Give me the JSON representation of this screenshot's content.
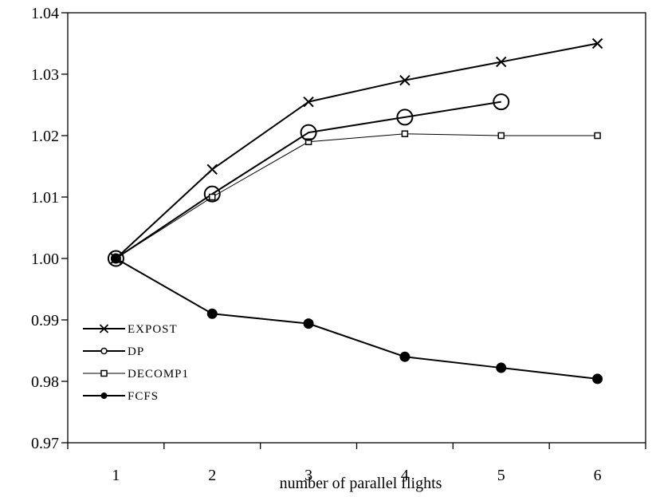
{
  "chart_data": {
    "type": "line",
    "title": "",
    "xlabel": "number of parallel flights",
    "ylabel": "",
    "x": [
      1,
      2,
      3,
      4,
      5,
      6
    ],
    "x_tick_labels": [
      "1",
      "2",
      "3",
      "4",
      "5",
      "6"
    ],
    "ylim": [
      0.97,
      1.04
    ],
    "y_ticks": [
      0.97,
      0.98,
      0.99,
      1.0,
      1.01,
      1.02,
      1.03,
      1.04
    ],
    "y_tick_labels": [
      "0.97",
      "0.98",
      "0.99",
      "1.00",
      "1.01",
      "1.02",
      "1.03",
      "1.04"
    ],
    "grid": false,
    "legend_position": "lower-left",
    "series": [
      {
        "name": "EXPOST",
        "marker": "x",
        "line_width": "thick",
        "x": [
          1,
          2,
          3,
          4,
          5,
          6
        ],
        "values": [
          1.0,
          1.0145,
          1.0255,
          1.029,
          1.032,
          1.035
        ]
      },
      {
        "name": "DP",
        "marker": "open-circle",
        "line_width": "thick",
        "x": [
          1,
          2,
          3,
          4,
          5
        ],
        "values": [
          1.0,
          1.0105,
          1.0205,
          1.023,
          1.0255
        ]
      },
      {
        "name": "DECOMP1",
        "marker": "open-square",
        "line_width": "thin",
        "x": [
          1,
          2,
          3,
          4,
          5,
          6
        ],
        "values": [
          1.0,
          1.01,
          1.019,
          1.0203,
          1.02,
          1.02
        ]
      },
      {
        "name": "FCFS",
        "marker": "filled-circle",
        "line_width": "thick",
        "x": [
          1,
          2,
          3,
          4,
          5,
          6
        ],
        "values": [
          1.0,
          0.991,
          0.9894,
          0.984,
          0.9822,
          0.9804
        ]
      }
    ]
  }
}
